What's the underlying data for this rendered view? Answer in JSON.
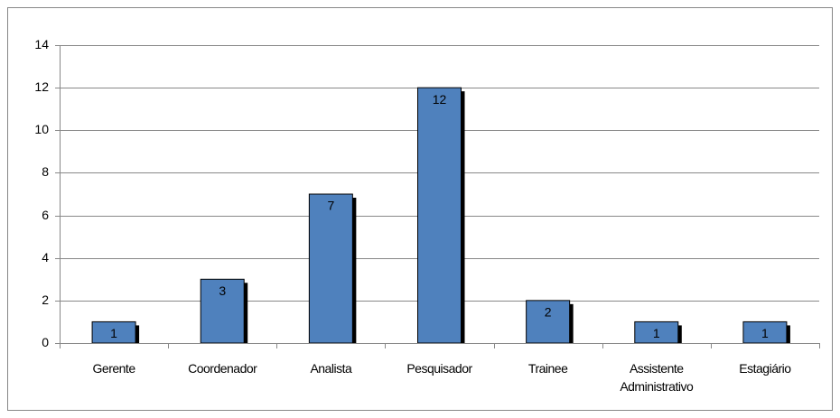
{
  "chart_data": {
    "type": "bar",
    "categories": [
      "Gerente",
      "Coordenador",
      "Analista",
      "Pesquisador",
      "Trainee",
      "Assistente Administrativo",
      "Estagiário"
    ],
    "values": [
      1,
      3,
      7,
      12,
      2,
      1,
      1
    ],
    "color": "#4f81bd",
    "ylim": [
      0,
      14
    ],
    "yticks": [
      0,
      2,
      4,
      6,
      8,
      10,
      12,
      14
    ],
    "grid": true
  }
}
